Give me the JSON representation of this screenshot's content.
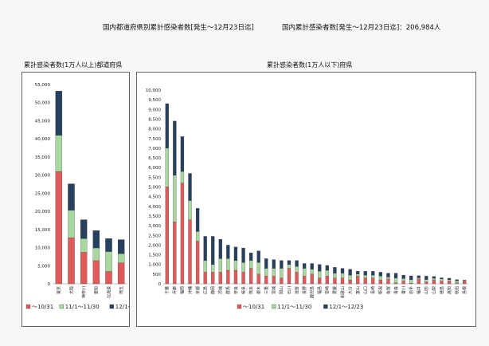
{
  "header": {
    "main_title": "国内都道府県別累計感染者数[発生～12月23日迄]",
    "total_label": "国内累計感染者数[発生～12月23日迄]：206,984人"
  },
  "chart_data": [
    {
      "type": "bar",
      "stacked": true,
      "title": "累計感染者数(1万人以上)都道府県",
      "ylim": [
        0,
        55000
      ],
      "yticks": [
        "0",
        "5,000",
        "10,000",
        "15,000",
        "20,000",
        "25,000",
        "30,000",
        "35,000",
        "40,000",
        "45,000",
        "50,000",
        "55,000"
      ],
      "categories": [
        "東京",
        "大阪",
        "神奈川",
        "愛知",
        "北海道",
        "埼玉"
      ],
      "series": [
        {
          "name": "～10/31",
          "color": "#e05a5a",
          "values": [
            31000,
            12700,
            8700,
            6400,
            3400,
            5800
          ]
        },
        {
          "name": "11/1～11/30",
          "color": "#a8d8a0",
          "values": [
            10000,
            7600,
            3800,
            3500,
            5500,
            2500
          ]
        },
        {
          "name": "12/1～12/23",
          "color": "#27405e",
          "values": [
            12200,
            7300,
            5200,
            4800,
            3600,
            3900
          ]
        }
      ],
      "legend_position": "bottom"
    },
    {
      "type": "bar",
      "stacked": true,
      "title": "累計感染者数(1万人以下)府県",
      "ylim": [
        0,
        10000
      ],
      "yticks": [
        "0",
        "500",
        "1,000",
        "1,500",
        "2,000",
        "2,500",
        "3,000",
        "3,500",
        "4,000",
        "4,500",
        "5,000",
        "5,500",
        "6,000",
        "6,500",
        "7,000",
        "7,500",
        "8,000",
        "8,500",
        "9,000",
        "9,500",
        "10,000"
      ],
      "categories": [
        "千葉",
        "兵庫",
        "福岡",
        "沖縄",
        "京都",
        "広島",
        "静岡",
        "茨城",
        "群馬",
        "奈良",
        "岐阜",
        "熊本",
        "栃木",
        "三重",
        "宮城",
        "岡山",
        "石川",
        "滋賀",
        "長野",
        "鹿児島",
        "福島",
        "宮崎",
        "愛媛",
        "和歌山",
        "大分",
        "富山",
        "山口",
        "長崎",
        "新潟",
        "佐賀",
        "青森",
        "香川",
        "岩手",
        "福井",
        "山形",
        "山梨",
        "徳島",
        "高知",
        "秋田",
        "島根"
      ],
      "series": [
        {
          "name": "～10/31",
          "color": "#e05a5a",
          "values": [
            5000,
            3200,
            5200,
            3300,
            2200,
            600,
            600,
            600,
            700,
            700,
            600,
            800,
            500,
            400,
            400,
            300,
            800,
            600,
            400,
            500,
            300,
            400,
            300,
            300,
            200,
            400,
            300,
            300,
            200,
            250,
            50,
            150,
            30,
            250,
            100,
            200,
            150,
            150,
            50,
            150
          ]
        },
        {
          "name": "11/1～11/30",
          "color": "#a8d8a0",
          "values": [
            2000,
            2400,
            600,
            1000,
            500,
            600,
            400,
            700,
            600,
            500,
            500,
            400,
            600,
            400,
            400,
            500,
            200,
            300,
            400,
            250,
            350,
            300,
            250,
            250,
            250,
            100,
            150,
            150,
            200,
            100,
            250,
            120,
            180,
            60,
            120,
            80,
            100,
            70,
            100,
            30
          ]
        },
        {
          "name": "12/1～12/23",
          "color": "#27405e",
          "values": [
            2300,
            2800,
            1800,
            1400,
            1200,
            1250,
            1450,
            1000,
            700,
            700,
            750,
            400,
            600,
            500,
            450,
            400,
            200,
            300,
            250,
            300,
            350,
            250,
            300,
            250,
            300,
            150,
            200,
            200,
            200,
            200,
            250,
            180,
            200,
            110,
            180,
            100,
            60,
            70,
            70,
            10
          ]
        }
      ],
      "legend_position": "bottom"
    }
  ]
}
